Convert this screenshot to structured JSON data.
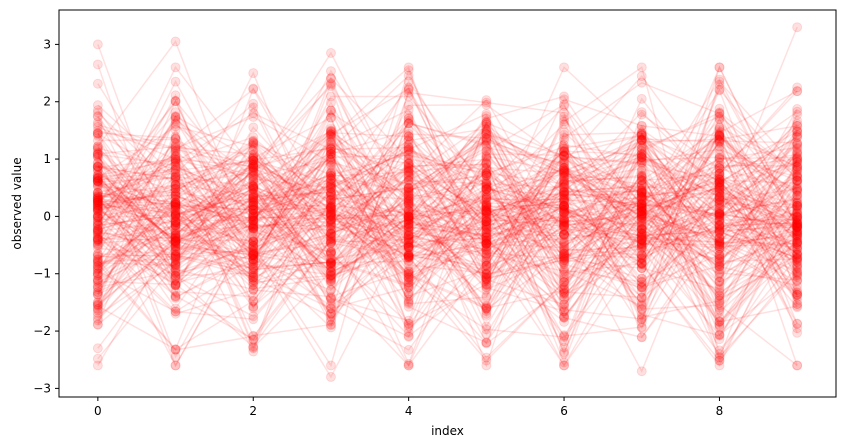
{
  "chart_data": {
    "type": "line",
    "title": "",
    "xlabel": "index",
    "ylabel": "observed value",
    "x": [
      0,
      1,
      2,
      3,
      4,
      5,
      6,
      7,
      8,
      9
    ],
    "xlim": [
      -0.5,
      9.5
    ],
    "ylim": [
      -3.15,
      3.6
    ],
    "xticks": [
      0,
      2,
      4,
      6,
      8
    ],
    "yticks": [
      -3,
      -2,
      -1,
      0,
      1,
      2,
      3
    ],
    "grid": false,
    "legend": "none",
    "marker": "circle",
    "series_color": "#ff0000",
    "series_alpha": 0.12,
    "series_count": 200,
    "random_seed": 12345,
    "distribution": "normal(0, 1)",
    "highlighted_points": [
      {
        "x": 0,
        "y": 3.0
      },
      {
        "x": 0,
        "y": 2.65
      },
      {
        "x": 0,
        "y": -2.3
      },
      {
        "x": 1,
        "y": 3.05
      },
      {
        "x": 1,
        "y": 2.6
      },
      {
        "x": 1,
        "y": 2.35
      },
      {
        "x": 1,
        "y": -2.45
      },
      {
        "x": 2,
        "y": 2.5
      },
      {
        "x": 2,
        "y": -2.3
      },
      {
        "x": 3,
        "y": 2.85
      },
      {
        "x": 3,
        "y": 2.3
      },
      {
        "x": 3,
        "y": -2.8
      },
      {
        "x": 4,
        "y": 2.55
      },
      {
        "x": 4,
        "y": 2.35
      },
      {
        "x": 4,
        "y": -2.6
      },
      {
        "x": 5,
        "y": 1.75
      },
      {
        "x": 5,
        "y": -2.05
      },
      {
        "x": 6,
        "y": 1.95
      },
      {
        "x": 6,
        "y": -2.6
      },
      {
        "x": 7,
        "y": 2.05
      },
      {
        "x": 7,
        "y": -2.7
      },
      {
        "x": 8,
        "y": 2.2
      },
      {
        "x": 8,
        "y": -2.4
      },
      {
        "x": 9,
        "y": 3.3
      },
      {
        "x": 9,
        "y": 2.25
      },
      {
        "x": 9,
        "y": -1.95
      }
    ]
  }
}
